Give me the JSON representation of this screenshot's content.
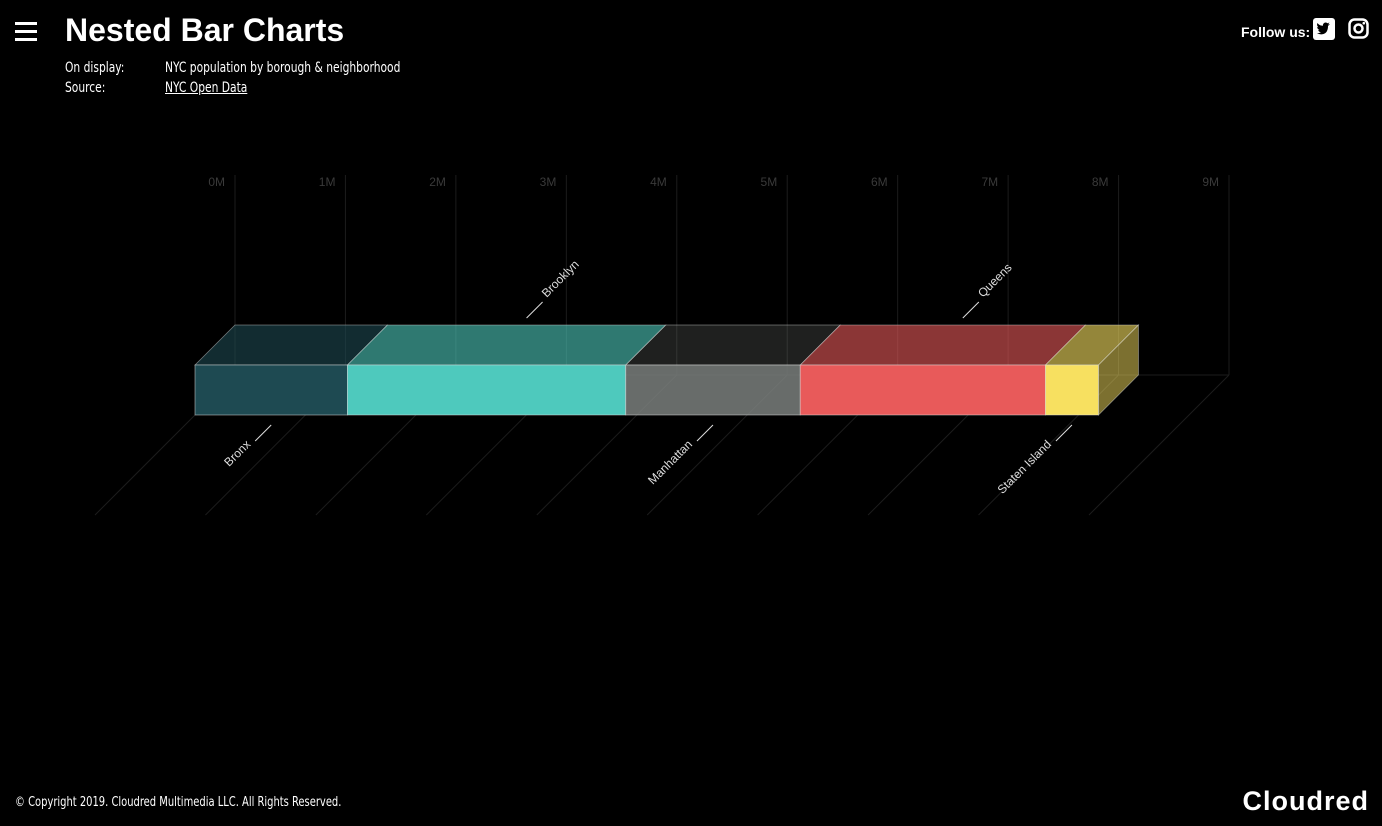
{
  "header": {
    "title": "Nested Bar Charts",
    "display_label": "On display:",
    "display_value": "NYC population by borough & neighborhood",
    "source_label": "Source:",
    "source_value": "NYC Open Data",
    "follow": "Follow us:"
  },
  "chart_data": {
    "type": "stacked-bar-3d",
    "orientation": "horizontal",
    "series": [
      {
        "name": "Bronx",
        "color": "#1e4a52",
        "values": [
          1.38
        ]
      },
      {
        "name": "Brooklyn",
        "color": "#4ec9bd",
        "values": [
          2.52
        ]
      },
      {
        "name": "Manhattan",
        "color": "#7a7f7c",
        "values": [
          1.58
        ]
      },
      {
        "name": "Queens",
        "color": "#e85a5a",
        "values": [
          2.22
        ]
      },
      {
        "name": "Staten Island",
        "color": "#f7e060",
        "values": [
          0.48
        ]
      }
    ],
    "xlim": [
      0,
      9
    ],
    "xticks": [
      {
        "value": 0,
        "label": "0M"
      },
      {
        "value": 1,
        "label": "1M"
      },
      {
        "value": 2,
        "label": "2M"
      },
      {
        "value": 3,
        "label": "3M"
      },
      {
        "value": 4,
        "label": "4M"
      },
      {
        "value": 5,
        "label": "5M"
      },
      {
        "value": 6,
        "label": "6M"
      },
      {
        "value": 7,
        "label": "7M"
      },
      {
        "value": 8,
        "label": "8M"
      },
      {
        "value": 9,
        "label": "9M"
      }
    ],
    "grid": true
  },
  "footer": {
    "copyright": "© Copyright 2019. Cloudred Multimedia LLC. All Rights Reserved.",
    "logo": "Cloudred"
  }
}
